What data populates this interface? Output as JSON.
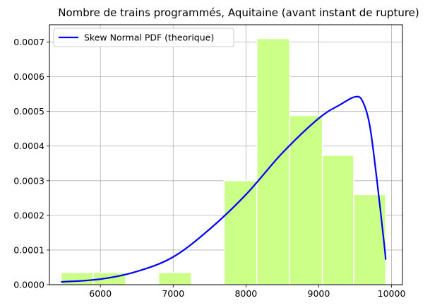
{
  "chart_data": {
    "type": "bar",
    "title": "Nombre de trains programmés, Aquitaine (avant instant de rupture)",
    "xlabel": "",
    "ylabel": "",
    "xlim": [
      5300,
      10150
    ],
    "ylim": [
      0,
      0.00075
    ],
    "grid": true,
    "legend_placement": "top-left",
    "histogram": {
      "color": "#ccff88",
      "edgecolor": "#ffffff",
      "bins": [
        {
          "x0": 5460,
          "x1": 5900,
          "value": 3.5e-05
        },
        {
          "x0": 5900,
          "x1": 6350,
          "value": 3.5e-05
        },
        {
          "x0": 6800,
          "x1": 7250,
          "value": 3.5e-05
        },
        {
          "x0": 7700,
          "x1": 8150,
          "value": 0.0003
        },
        {
          "x0": 8150,
          "x1": 8600,
          "value": 0.00071
        },
        {
          "x0": 8600,
          "x1": 9050,
          "value": 0.000488
        },
        {
          "x0": 9050,
          "x1": 9480,
          "value": 0.000373
        },
        {
          "x0": 9480,
          "x1": 9920,
          "value": 0.00026
        }
      ]
    },
    "series": [
      {
        "name": "Skew Normal PDF (theorique)",
        "color": "#0000ff",
        "x": [
          5460,
          6000,
          6500,
          7000,
          7500,
          8000,
          8500,
          9000,
          9300,
          9500,
          9600,
          9700,
          9800,
          9900,
          9920
        ],
        "values": [
          8e-06,
          1.6e-05,
          3.8e-05,
          8e-05,
          0.00016,
          0.00026,
          0.00038,
          0.00048,
          0.00052,
          0.000542,
          0.00053,
          0.00046,
          0.0003,
          0.000115,
          7.2e-05
        ]
      }
    ],
    "xticks": [
      6000,
      7000,
      8000,
      9000,
      10000
    ],
    "xtick_labels": [
      "6000",
      "7000",
      "8000",
      "9000",
      "10000"
    ],
    "yticks": [
      0,
      0.0001,
      0.0002,
      0.0003,
      0.0004,
      0.0005,
      0.0006,
      0.0007
    ],
    "ytick_labels": [
      "0.0000",
      "0.0001",
      "0.0002",
      "0.0003",
      "0.0004",
      "0.0005",
      "0.0006",
      "0.0007"
    ]
  }
}
